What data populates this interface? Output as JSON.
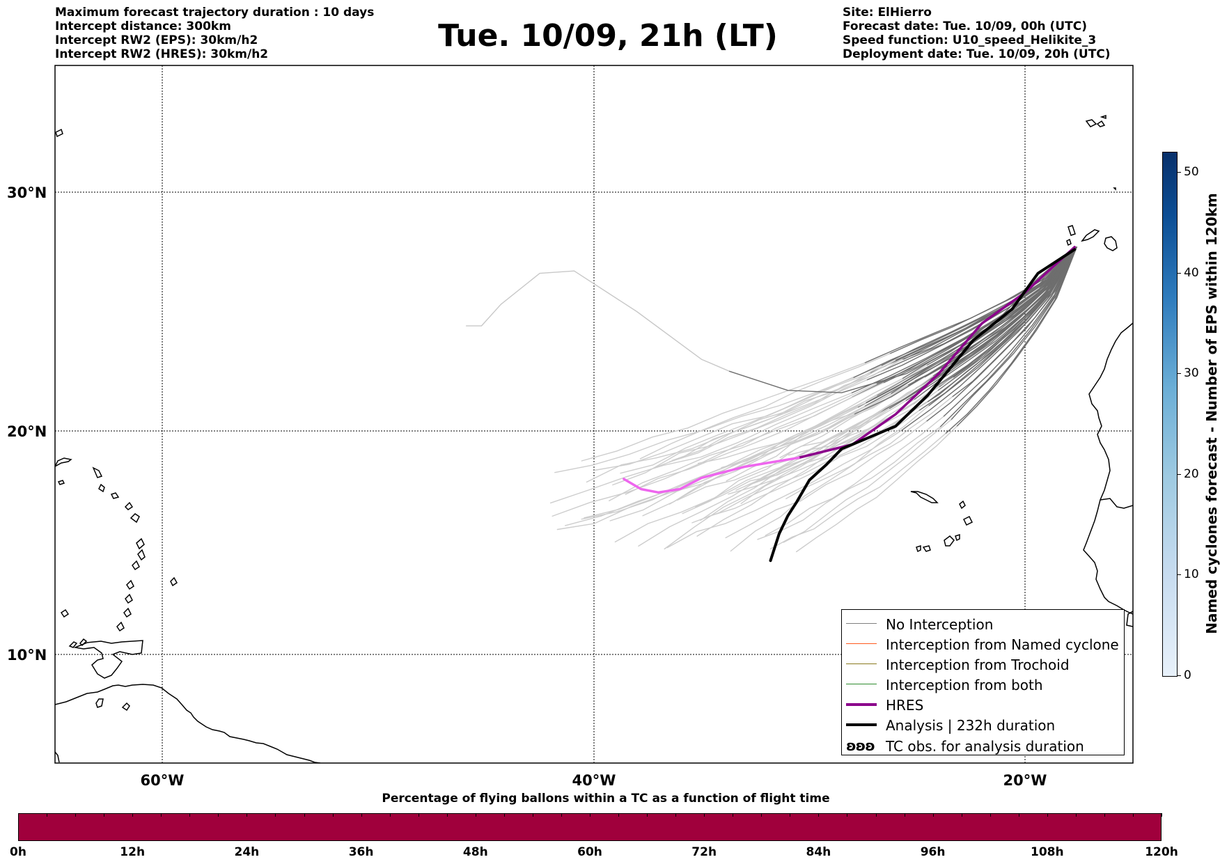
{
  "header": {
    "left_lines": [
      "Maximum forecast trajectory duration : 10 days",
      "Intercept distance: 300km",
      "Intercept RW2 (EPS):  30km/h2",
      "Intercept RW2 (HRES): 30km/h2"
    ],
    "title": "Tue. 10/09, 21h (LT)",
    "right_lines": [
      "Site: ElHierro",
      "Forecast date: Tue. 10/09, 00h (UTC)",
      "Speed function: U10_speed_Helikite_3",
      "Deployment date: Tue. 10/09, 20h (UTC)"
    ]
  },
  "map": {
    "lat_labels": [
      "30°N",
      "20°N",
      "10°N"
    ],
    "lon_labels": [
      "60°W",
      "40°W",
      "20°W"
    ],
    "extent": {
      "lon_min": -65,
      "lon_max": -15,
      "lat_min": 5.4,
      "lat_max": 34.7
    },
    "site_lon": -17.6,
    "site_lat": 27.7
  },
  "legend": {
    "items": [
      {
        "label": "No Interception",
        "color": "#808080"
      },
      {
        "label": "Interception from Named cyclone",
        "color": "#ff5a1e"
      },
      {
        "label": "Interception from Trochoid",
        "color": "#8a7a1e"
      },
      {
        "label": "Interception from both",
        "color": "#2e8b2e"
      },
      {
        "label": "HRES",
        "color": "#8b008b"
      },
      {
        "label": "Analysis | 232h duration",
        "color": "#000000"
      }
    ],
    "tc_symbol": "ʚʚʚ",
    "tc_label": "TC obs. for analysis duration"
  },
  "colorbar": {
    "title": "Named cyclones forecast - Number of EPS within 120km",
    "ticks": [
      "0",
      "10",
      "20",
      "30",
      "40",
      "50"
    ],
    "max": 52
  },
  "bottom": {
    "title": "Percentage of flying ballons within a TC as a function of flight time",
    "bar_color": "#a0003c",
    "tick_labels": [
      "0h",
      "12h",
      "24h",
      "36h",
      "48h",
      "60h",
      "72h",
      "84h",
      "96h",
      "108h",
      "120h"
    ]
  },
  "chart_data": {
    "type": "trajectory-map",
    "hres_track": {
      "color_early": "#8b008b",
      "color_late": "#ee66ee",
      "points": [
        [
          -17.7,
          27.7
        ],
        [
          -20,
          25.8
        ],
        [
          -22,
          24.5
        ],
        [
          -24,
          22.4
        ],
        [
          -26,
          20.7
        ],
        [
          -28,
          19.4
        ],
        [
          -30.5,
          18.8
        ],
        [
          -33,
          18.4
        ],
        [
          -35,
          17.9
        ],
        [
          -36,
          17.4
        ],
        [
          -37,
          17.25
        ],
        [
          -37.8,
          17.4
        ],
        [
          -38.6,
          17.85
        ]
      ]
    },
    "analysis_track": {
      "color": "#000000",
      "points": [
        [
          -17.7,
          27.6
        ],
        [
          -19.4,
          26.6
        ],
        [
          -20.6,
          25.1
        ],
        [
          -22.4,
          23.8
        ],
        [
          -24.5,
          21.5
        ],
        [
          -26,
          20.2
        ],
        [
          -27.5,
          19.6
        ],
        [
          -28.5,
          19.2
        ],
        [
          -29.2,
          18.5
        ],
        [
          -30,
          17.8
        ],
        [
          -30.6,
          16.8
        ],
        [
          -31,
          16.2
        ],
        [
          -31.4,
          15.4
        ],
        [
          -31.8,
          14.2
        ]
      ]
    },
    "long_loop_track": {
      "color": "#c8c8c8",
      "points": [
        [
          -45.9,
          24.4
        ],
        [
          -45.2,
          24.4
        ],
        [
          -44.3,
          25.3
        ],
        [
          -42.5,
          26.6
        ],
        [
          -40.9,
          26.7
        ],
        [
          -38,
          25
        ],
        [
          -35,
          23
        ],
        [
          -33.7,
          22.5
        ],
        [
          -31,
          21.7
        ],
        [
          -28.5,
          21.6
        ],
        [
          -25.5,
          22.4
        ],
        [
          -23,
          23.6
        ],
        [
          -21,
          24.9
        ],
        [
          -19.4,
          26.4
        ],
        [
          -17.7,
          27.7
        ]
      ]
    }
  }
}
